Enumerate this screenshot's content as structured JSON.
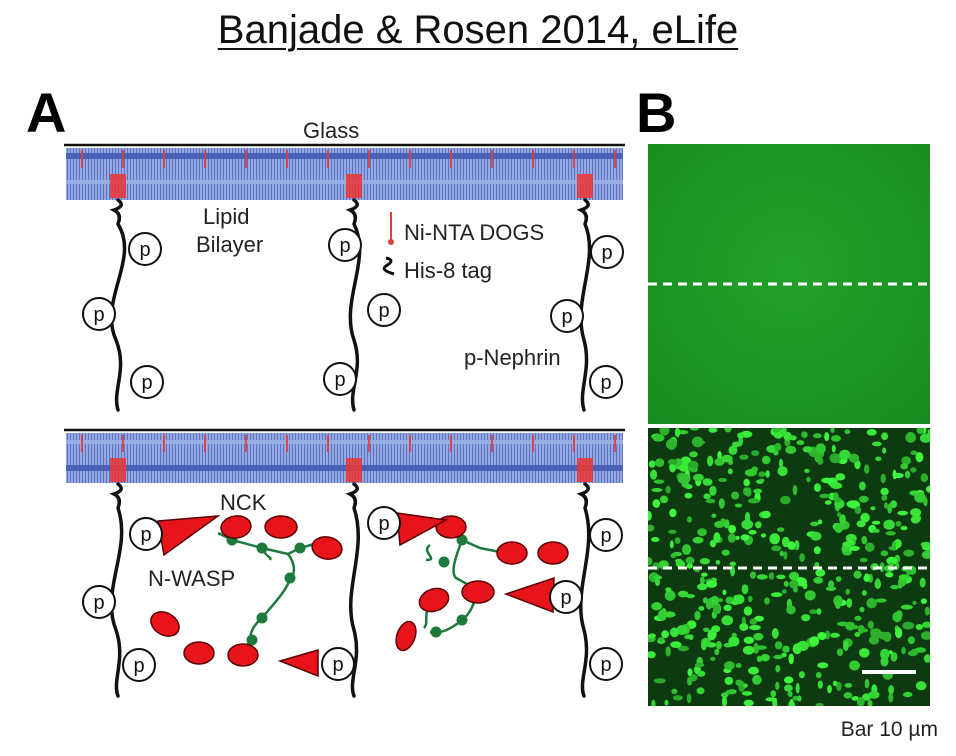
{
  "title": "Banjade & Rosen 2014, eLife",
  "panel_a": {
    "letter": "A",
    "labels": {
      "glass": "Glass",
      "lipid_line1": "Lipid",
      "lipid_line2": "Bilayer",
      "ni_nta": "Ni-NTA DOGS",
      "his_tag": "His-8 tag",
      "p_nephrin": "p-Nephrin",
      "nck": "NCK",
      "n_wasp": "N-WASP",
      "phospho": "p"
    }
  },
  "panel_b": {
    "letter": "B",
    "scale_caption": "Bar 10 µm"
  },
  "colors": {
    "membrane": "#4a62b5",
    "membrane_light": "#9aaee6",
    "lipid_red": "#e53b3b",
    "protein_red": "#e8141c",
    "linker_green": "#1e7a3c",
    "fluor_green": "#1c9a24",
    "fluor_bright": "#33e13b"
  }
}
